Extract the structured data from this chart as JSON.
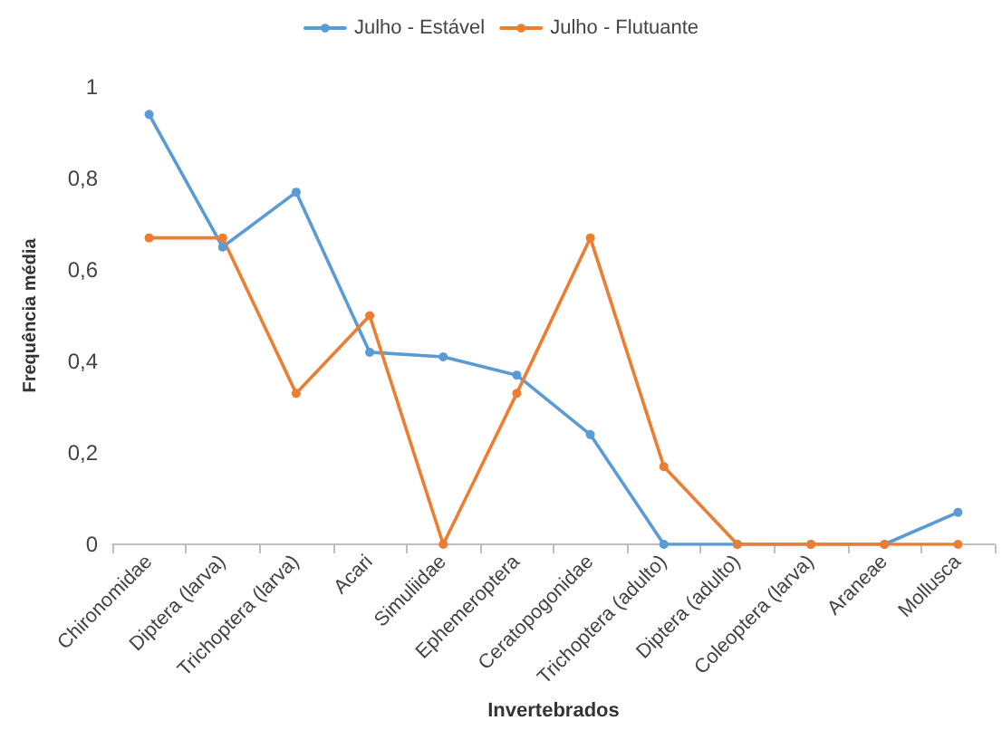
{
  "chart_data": {
    "type": "line",
    "xlabel": "Invertebrados",
    "ylabel": "Frequência média",
    "categories": [
      "Chironomidae",
      "Diptera (larva)",
      "Trichoptera (larva)",
      "Acari",
      "Simuliidae",
      "Ephemeroptera",
      "Ceratopogonidae",
      "Trichoptera (adulto)",
      "Diptera (adulto)",
      "Coleoptera (larva)",
      "Araneae",
      "Mollusca"
    ],
    "series": [
      {
        "name": "Julho - Estável",
        "color": "#5b9bd5",
        "values": [
          0.94,
          0.65,
          0.77,
          0.42,
          0.41,
          0.37,
          0.24,
          0,
          0,
          0,
          0,
          0.07
        ]
      },
      {
        "name": "Julho - Flutuante",
        "color": "#ed7d31",
        "values": [
          0.67,
          0.67,
          0.33,
          0.5,
          0,
          0.33,
          0.67,
          0.17,
          0,
          0,
          0,
          0
        ]
      }
    ],
    "ylim": [
      0,
      1
    ],
    "yticks": [
      0,
      {
        "value": 0.2,
        "label": "0,2"
      },
      {
        "value": 0.4,
        "label": "0,4"
      },
      {
        "value": 0.6,
        "label": "0,6"
      },
      {
        "value": 0.8,
        "label": "0,8"
      },
      1
    ],
    "grid": false,
    "legend": "top",
    "marker": "circle",
    "line_style": "solid"
  }
}
